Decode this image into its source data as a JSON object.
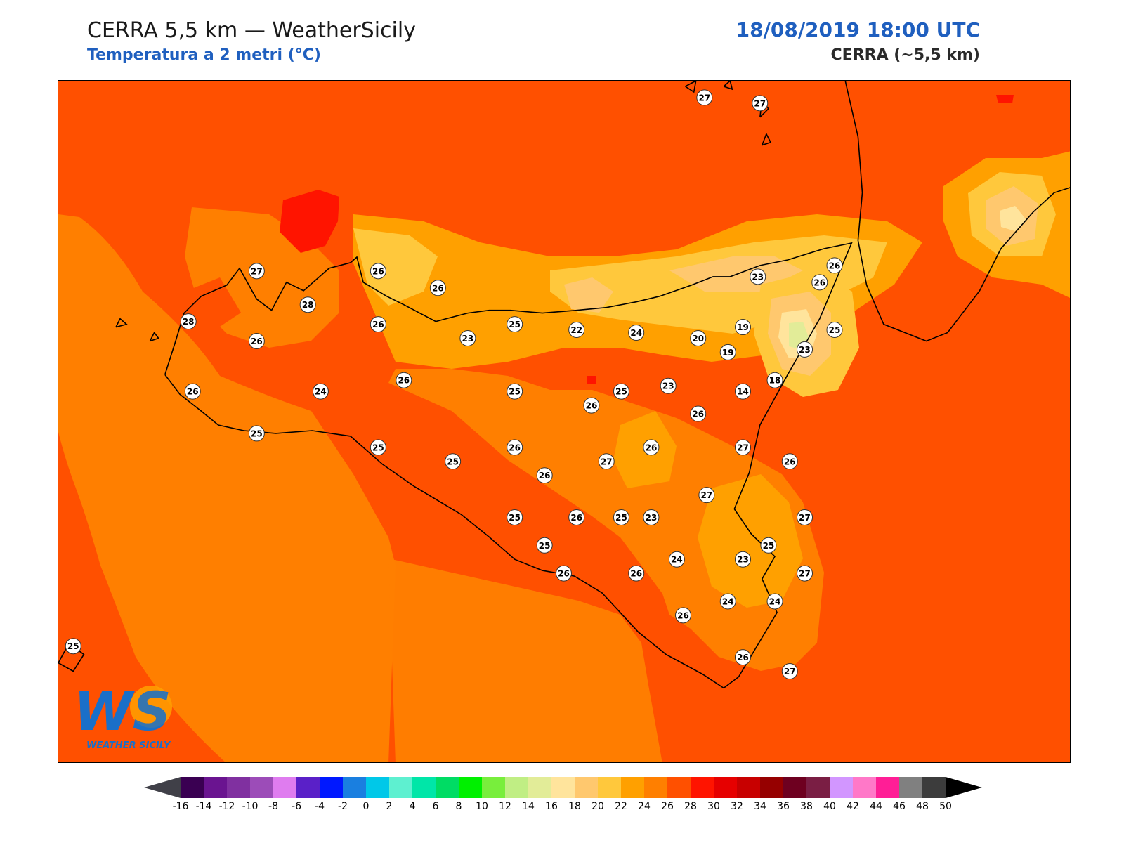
{
  "header": {
    "title": "CERRA 5,5 km — WeatherSicily",
    "subtitle": "Temperatura a 2 metri (°C)",
    "datetime": "18/08/2019 18:00 UTC",
    "model": "CERRA (~5,5 km)"
  },
  "logo": {
    "text": "WS",
    "caption": "WEATHER SICILY"
  },
  "stations": [
    {
      "v": "27",
      "lon": 14.96,
      "lat": 38.79
    },
    {
      "v": "27",
      "lon": 15.22,
      "lat": 38.77
    },
    {
      "v": "27",
      "lon": 12.86,
      "lat": 38.17
    },
    {
      "v": "26",
      "lon": 13.43,
      "lat": 38.17
    },
    {
      "v": "26",
      "lon": 13.71,
      "lat": 38.11
    },
    {
      "v": "28",
      "lon": 13.1,
      "lat": 38.05
    },
    {
      "v": "28",
      "lon": 12.54,
      "lat": 37.99
    },
    {
      "v": "26",
      "lon": 12.86,
      "lat": 37.92
    },
    {
      "v": "26",
      "lon": 13.43,
      "lat": 37.98
    },
    {
      "v": "23",
      "lon": 13.85,
      "lat": 37.93
    },
    {
      "v": "25",
      "lon": 14.07,
      "lat": 37.98
    },
    {
      "v": "22",
      "lon": 14.36,
      "lat": 37.96
    },
    {
      "v": "24",
      "lon": 14.64,
      "lat": 37.95
    },
    {
      "v": "20",
      "lon": 14.93,
      "lat": 37.93
    },
    {
      "v": "19",
      "lon": 15.14,
      "lat": 37.97
    },
    {
      "v": "19",
      "lon": 15.07,
      "lat": 37.88
    },
    {
      "v": "23",
      "lon": 15.21,
      "lat": 38.15
    },
    {
      "v": "26",
      "lon": 15.5,
      "lat": 38.13
    },
    {
      "v": "26",
      "lon": 15.57,
      "lat": 38.19
    },
    {
      "v": "25",
      "lon": 15.57,
      "lat": 37.96
    },
    {
      "v": "23",
      "lon": 15.43,
      "lat": 37.89
    },
    {
      "v": "18",
      "lon": 15.29,
      "lat": 37.78
    },
    {
      "v": "14",
      "lon": 15.14,
      "lat": 37.74
    },
    {
      "v": "23",
      "lon": 14.79,
      "lat": 37.76
    },
    {
      "v": "26",
      "lon": 12.56,
      "lat": 37.74
    },
    {
      "v": "24",
      "lon": 13.16,
      "lat": 37.74
    },
    {
      "v": "26",
      "lon": 13.55,
      "lat": 37.78
    },
    {
      "v": "25",
      "lon": 14.07,
      "lat": 37.74
    },
    {
      "v": "26",
      "lon": 14.43,
      "lat": 37.69
    },
    {
      "v": "25",
      "lon": 14.57,
      "lat": 37.74
    },
    {
      "v": "26",
      "lon": 14.93,
      "lat": 37.66
    },
    {
      "v": "25",
      "lon": 12.86,
      "lat": 37.59
    },
    {
      "v": "25",
      "lon": 13.43,
      "lat": 37.54
    },
    {
      "v": "25",
      "lon": 13.78,
      "lat": 37.49
    },
    {
      "v": "26",
      "lon": 14.07,
      "lat": 37.54
    },
    {
      "v": "26",
      "lon": 14.71,
      "lat": 37.54
    },
    {
      "v": "27",
      "lon": 15.14,
      "lat": 37.54
    },
    {
      "v": "26",
      "lon": 15.36,
      "lat": 37.49
    },
    {
      "v": "26",
      "lon": 14.21,
      "lat": 37.44
    },
    {
      "v": "27",
      "lon": 14.5,
      "lat": 37.49
    },
    {
      "v": "27",
      "lon": 14.97,
      "lat": 37.37
    },
    {
      "v": "25",
      "lon": 14.07,
      "lat": 37.29
    },
    {
      "v": "26",
      "lon": 14.36,
      "lat": 37.29
    },
    {
      "v": "25",
      "lon": 14.57,
      "lat": 37.29
    },
    {
      "v": "23",
      "lon": 14.71,
      "lat": 37.29
    },
    {
      "v": "27",
      "lon": 15.43,
      "lat": 37.29
    },
    {
      "v": "25",
      "lon": 14.21,
      "lat": 37.19
    },
    {
      "v": "24",
      "lon": 14.83,
      "lat": 37.14
    },
    {
      "v": "23",
      "lon": 15.14,
      "lat": 37.14
    },
    {
      "v": "25",
      "lon": 15.26,
      "lat": 37.19
    },
    {
      "v": "26",
      "lon": 14.3,
      "lat": 37.09
    },
    {
      "v": "26",
      "lon": 14.64,
      "lat": 37.09
    },
    {
      "v": "27",
      "lon": 15.43,
      "lat": 37.09
    },
    {
      "v": "24",
      "lon": 15.07,
      "lat": 36.99
    },
    {
      "v": "24",
      "lon": 15.29,
      "lat": 36.99
    },
    {
      "v": "26",
      "lon": 14.86,
      "lat": 36.94
    },
    {
      "v": "26",
      "lon": 15.14,
      "lat": 36.79
    },
    {
      "v": "27",
      "lon": 15.36,
      "lat": 36.74
    },
    {
      "v": "25",
      "lon": 12.0,
      "lat": 36.83
    }
  ],
  "colorbar": {
    "ticks": [
      "-16",
      "-14",
      "-12",
      "-10",
      "-8",
      "-6",
      "-4",
      "-2",
      "0",
      "2",
      "4",
      "6",
      "8",
      "10",
      "12",
      "14",
      "16",
      "18",
      "20",
      "22",
      "24",
      "26",
      "28",
      "30",
      "32",
      "34",
      "36",
      "38",
      "40",
      "42",
      "44",
      "46",
      "48",
      "50"
    ],
    "colors": [
      "#3a0052",
      "#6a1490",
      "#8030a0",
      "#9c4cb8",
      "#df7cef",
      "#5a20c8",
      "#0018ff",
      "#1a7fe0",
      "#00c8e8",
      "#5ef0d0",
      "#00e6a8",
      "#00dc64",
      "#00f000",
      "#78ee3c",
      "#c0ee84",
      "#e2ec98",
      "#ffe49c",
      "#ffc86e",
      "#ffc83c",
      "#ffa000",
      "#ff7f00",
      "#ff5000",
      "#ff1400",
      "#e60000",
      "#c80000",
      "#960000",
      "#6e0020",
      "#7a1e44",
      "#d296ff",
      "#ff78c8",
      "#ff1e96",
      "#808080",
      "#3c3c3c"
    ],
    "under": "#404048",
    "over": "#000000"
  }
}
